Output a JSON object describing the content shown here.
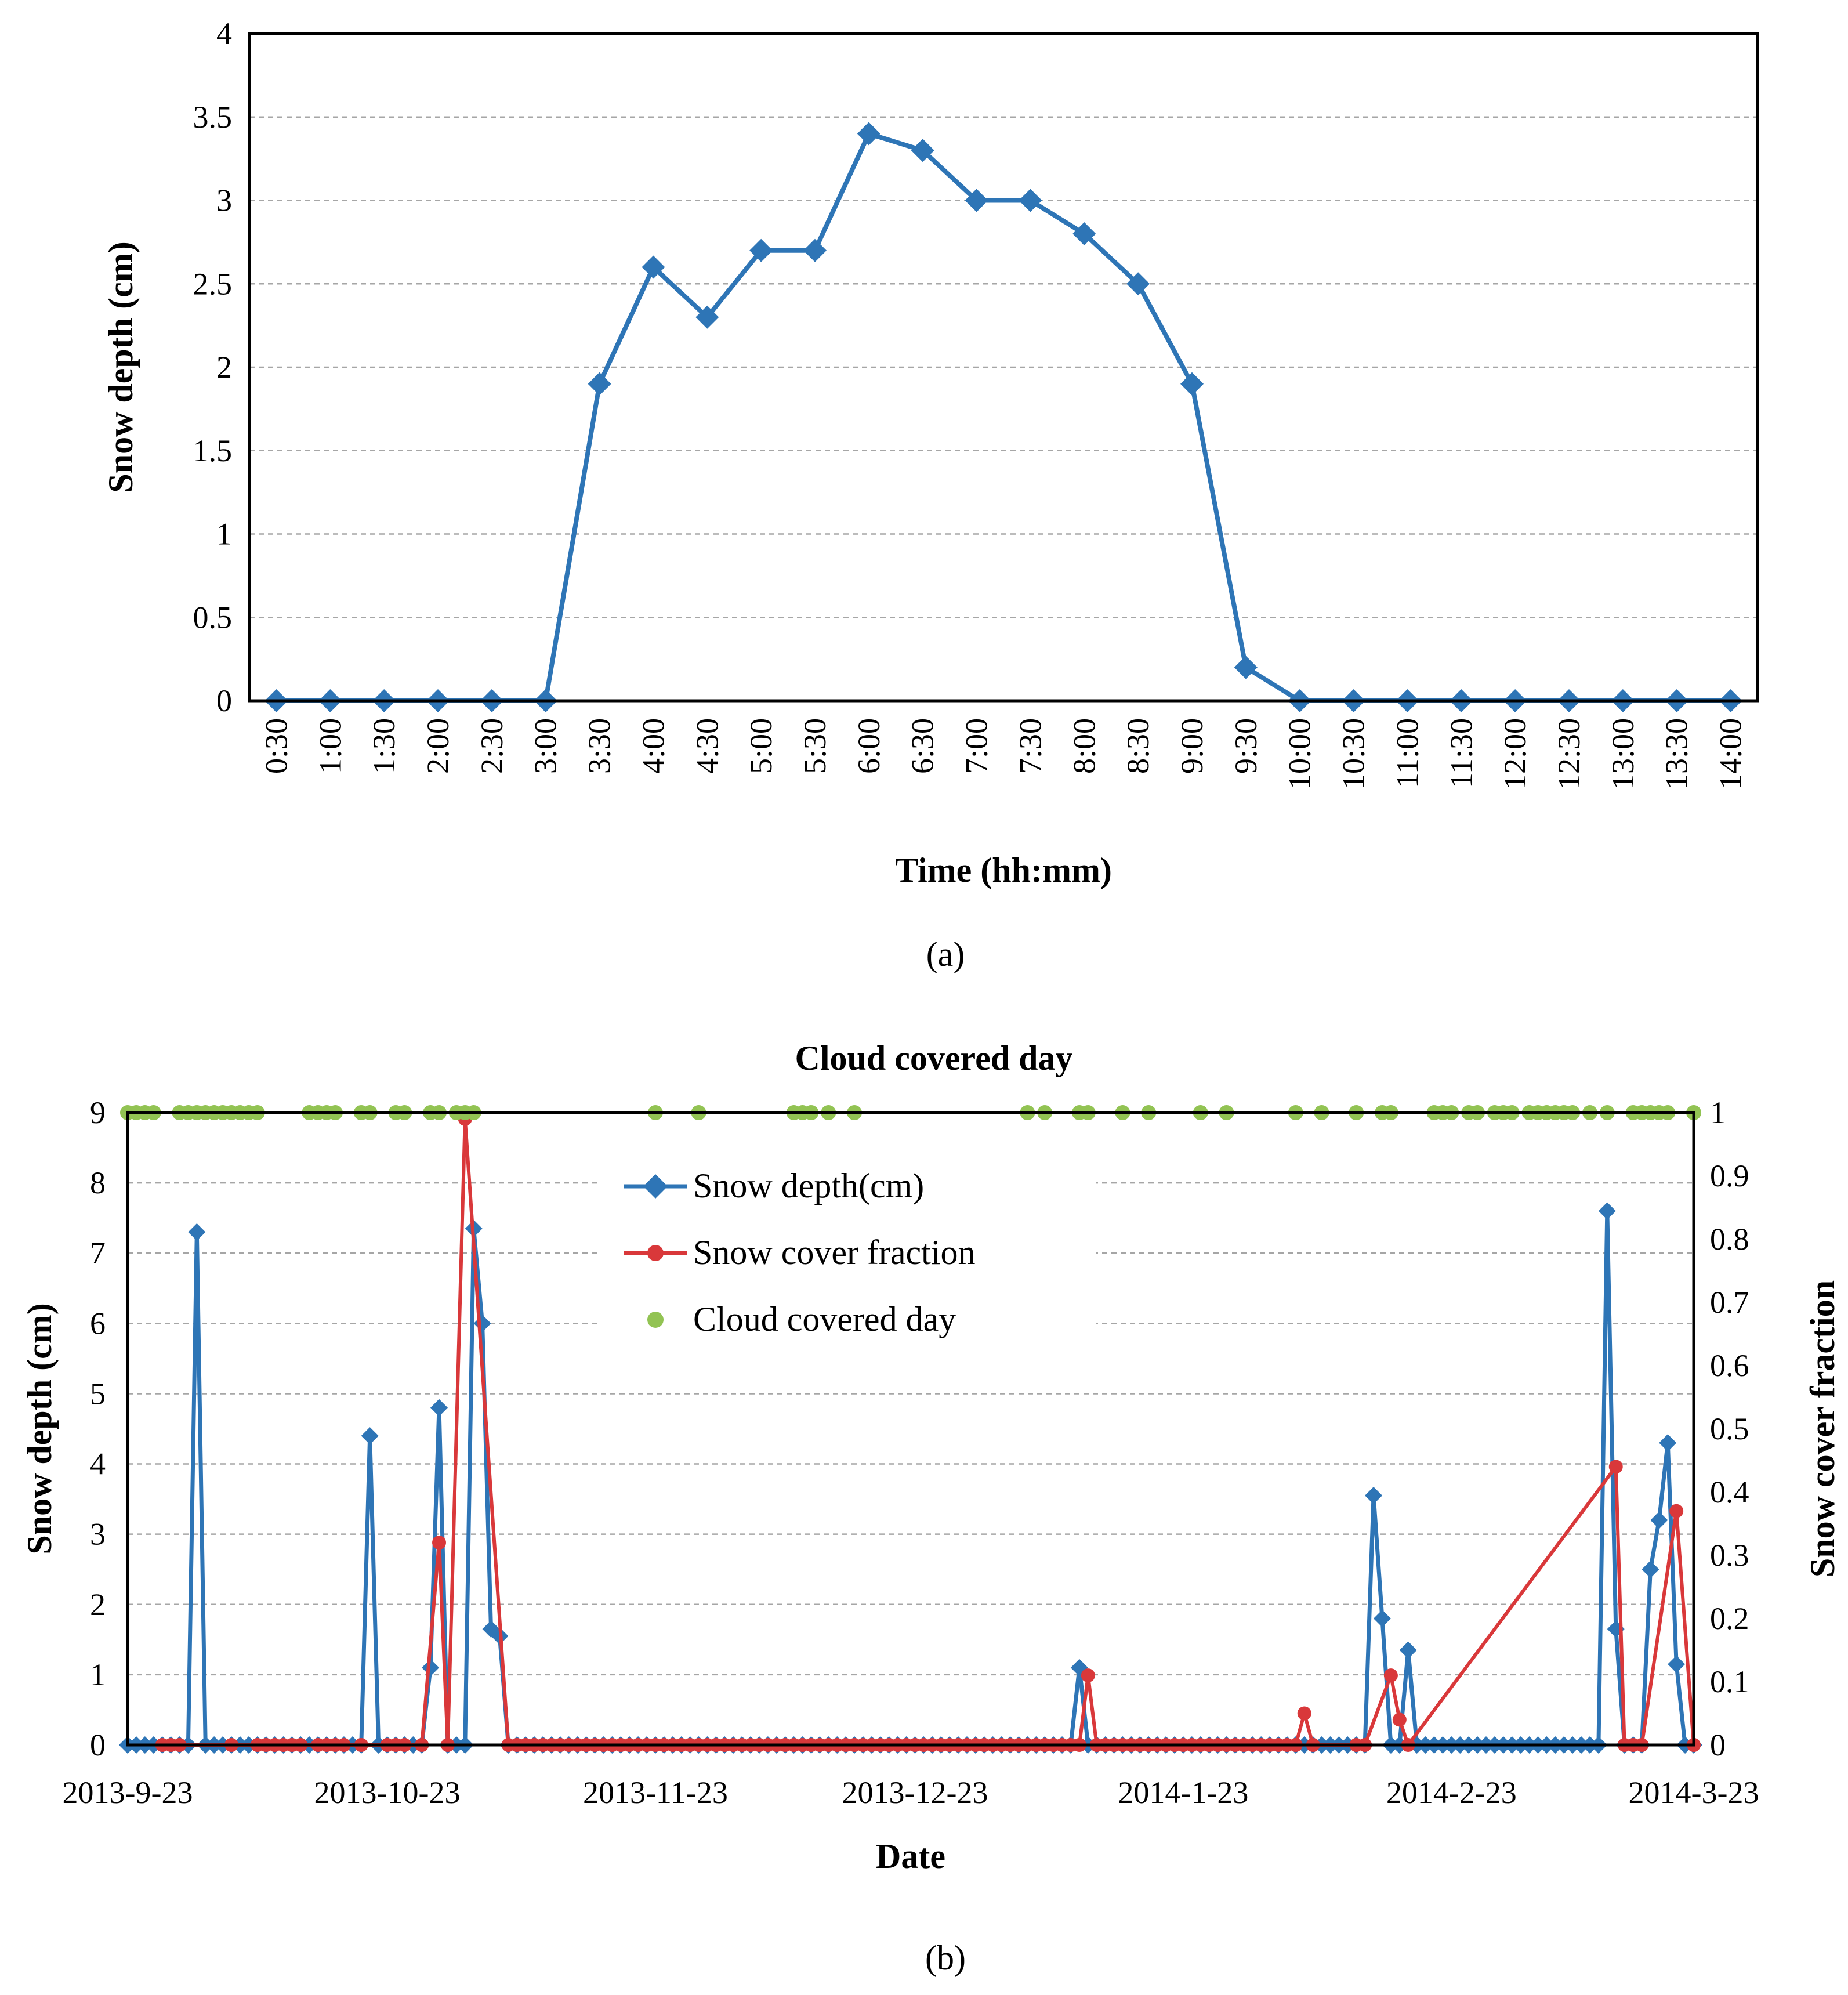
{
  "figure": {
    "caption_a": "(a)",
    "caption_b": "(b)"
  },
  "chart_data": [
    {
      "type": "line",
      "title": "",
      "xlabel": "Time (hh:mm)",
      "ylabel": "Snow depth (cm)",
      "ylim": [
        0,
        4
      ],
      "yticks": [
        0,
        0.5,
        1,
        1.5,
        2,
        2.5,
        3,
        3.5,
        4
      ],
      "ytick_labels": [
        "0",
        "0.5",
        "1",
        "1.5",
        "2",
        "2.5",
        "3",
        "3.5",
        "4"
      ],
      "grid": true,
      "categories": [
        "0:30",
        "1:00",
        "1:30",
        "2:00",
        "2:30",
        "3:00",
        "3:30",
        "4:00",
        "4:30",
        "5:00",
        "5:30",
        "6:00",
        "6:30",
        "7:00",
        "7:30",
        "8:00",
        "8:30",
        "9:00",
        "9:30",
        "10:00",
        "10:30",
        "11:00",
        "11:30",
        "12:00",
        "12:30",
        "13:00",
        "13:30",
        "14:00"
      ],
      "series": [
        {
          "name": "Snow depth",
          "color": "#2e75b6",
          "marker": "diamond",
          "values": [
            0,
            0,
            0,
            0,
            0,
            0,
            1.9,
            2.6,
            2.3,
            2.7,
            2.7,
            3.4,
            3.3,
            3.0,
            3.0,
            2.8,
            2.5,
            1.9,
            0.2,
            0,
            0,
            0,
            0,
            0,
            0,
            0,
            0,
            0
          ]
        }
      ]
    },
    {
      "type": "line",
      "title": "Cloud covered day",
      "xlabel": "Date",
      "ylabel": "Snow depth (cm)",
      "y2label": "Snow cover fraction",
      "ylim": [
        0,
        9
      ],
      "y2lim": [
        0,
        1
      ],
      "yticks": [
        0,
        1,
        2,
        3,
        4,
        5,
        6,
        7,
        8,
        9
      ],
      "ytick_labels": [
        "0",
        "1",
        "2",
        "3",
        "4",
        "5",
        "6",
        "7",
        "8",
        "9"
      ],
      "y2ticks": [
        0,
        0.1,
        0.2,
        0.3,
        0.4,
        0.5,
        0.6,
        0.7,
        0.8,
        0.9,
        1
      ],
      "y2tick_labels": [
        "0",
        "0.1",
        "0.2",
        "0.3",
        "0.4",
        "0.5",
        "0.6",
        "0.7",
        "0.8",
        "0.9",
        "1"
      ],
      "xtick_days": [
        0,
        30,
        61,
        91,
        122,
        153,
        181
      ],
      "xtick_labels": [
        "2013-9-23",
        "2013-10-23",
        "2013-11-23",
        "2013-12-23",
        "2014-1-23",
        "2014-2-23",
        "2014-3-23"
      ],
      "xlim_days": [
        0,
        181
      ],
      "grid": true,
      "legend_position": "top-center",
      "legend": [
        "Snow depth(cm)",
        "Snow cover fraction",
        "Cloud covered day"
      ],
      "series": [
        {
          "name": "Snow depth(cm)",
          "color": "#2e75b6",
          "marker": "diamond",
          "axis": "left",
          "points": [
            [
              0,
              0
            ],
            [
              1,
              0
            ],
            [
              2,
              0
            ],
            [
              3,
              0
            ],
            [
              4,
              0
            ],
            [
              5,
              0
            ],
            [
              6,
              0
            ],
            [
              7,
              0
            ],
            [
              8,
              7.3
            ],
            [
              9,
              0
            ],
            [
              10,
              0
            ],
            [
              11,
              0
            ],
            [
              12,
              0
            ],
            [
              13,
              0
            ],
            [
              14,
              0
            ],
            [
              15,
              0
            ],
            [
              16,
              0
            ],
            [
              17,
              0
            ],
            [
              18,
              0
            ],
            [
              19,
              0
            ],
            [
              20,
              0
            ],
            [
              21,
              0
            ],
            [
              22,
              0
            ],
            [
              23,
              0
            ],
            [
              24,
              0
            ],
            [
              25,
              0
            ],
            [
              26,
              0
            ],
            [
              27,
              0
            ],
            [
              28,
              4.4
            ],
            [
              29,
              0
            ],
            [
              30,
              0
            ],
            [
              31,
              0
            ],
            [
              32,
              0
            ],
            [
              33,
              0
            ],
            [
              34,
              0
            ],
            [
              35,
              1.1
            ],
            [
              36,
              4.8
            ],
            [
              37,
              0
            ],
            [
              38,
              0
            ],
            [
              39,
              0
            ],
            [
              40,
              7.35
            ],
            [
              41,
              6.0
            ],
            [
              42,
              1.65
            ],
            [
              43,
              1.55
            ],
            [
              44,
              0
            ],
            [
              45,
              0
            ],
            [
              126,
              0
            ],
            [
              127,
              0
            ],
            [
              128,
              0
            ],
            [
              129,
              0
            ],
            [
              130,
              0
            ],
            [
              131,
              0
            ],
            [
              132,
              0
            ],
            [
              133,
              0
            ],
            [
              134,
              0
            ],
            [
              135,
              0
            ],
            [
              136,
              0
            ],
            [
              137,
              0
            ],
            [
              138,
              0
            ],
            [
              139,
              0
            ],
            [
              140,
              0
            ],
            [
              141,
              0
            ],
            [
              142,
              0
            ],
            [
              143,
              0
            ],
            [
              144,
              3.55
            ],
            [
              145,
              1.8
            ],
            [
              146,
              0
            ],
            [
              147,
              0
            ],
            [
              148,
              1.35
            ],
            [
              149,
              0
            ],
            [
              150,
              0
            ],
            [
              151,
              0
            ],
            [
              152,
              0
            ],
            [
              153,
              0
            ],
            [
              154,
              0
            ],
            [
              155,
              0
            ],
            [
              156,
              0
            ],
            [
              157,
              0
            ],
            [
              158,
              0
            ],
            [
              159,
              0
            ],
            [
              160,
              0
            ],
            [
              161,
              0
            ],
            [
              162,
              0
            ],
            [
              163,
              0
            ],
            [
              164,
              0
            ],
            [
              165,
              0
            ],
            [
              166,
              0
            ],
            [
              167,
              0
            ],
            [
              168,
              0
            ],
            [
              169,
              0
            ],
            [
              170,
              0
            ],
            [
              171,
              7.6
            ],
            [
              172,
              1.65
            ],
            [
              173,
              0
            ],
            [
              174,
              0
            ],
            [
              175,
              0
            ],
            [
              176,
              2.5
            ],
            [
              177,
              3.2
            ],
            [
              178,
              4.3
            ],
            [
              179,
              1.15
            ],
            [
              180,
              0
            ],
            [
              181,
              0
            ]
          ],
          "flat_segments": [
            [
              45,
              126
            ]
          ],
          "flat_extra_points": [
            [
              110,
              1.1
            ],
            [
              111,
              0
            ]
          ]
        },
        {
          "name": "Snow cover fraction",
          "color": "#d9383a",
          "marker": "circle",
          "axis": "right",
          "points": [
            [
              4,
              0
            ],
            [
              5,
              0
            ],
            [
              6,
              0
            ],
            [
              12,
              0
            ],
            [
              15,
              0
            ],
            [
              16,
              0
            ],
            [
              17,
              0
            ],
            [
              18,
              0
            ],
            [
              19,
              0
            ],
            [
              20,
              0
            ],
            [
              22,
              0
            ],
            [
              23,
              0
            ],
            [
              24,
              0
            ],
            [
              25,
              0
            ],
            [
              27,
              0
            ],
            [
              30,
              0
            ],
            [
              31,
              0
            ],
            [
              32,
              0
            ],
            [
              34,
              0
            ],
            [
              36,
              0.32
            ],
            [
              37,
              0
            ],
            [
              39,
              0.99
            ],
            [
              44,
              0
            ],
            [
              45,
              0
            ],
            [
              111,
              0.11
            ],
            [
              112,
              0
            ],
            [
              136,
              0.05
            ],
            [
              137,
              0
            ],
            [
              142,
              0
            ],
            [
              143,
              0
            ],
            [
              146,
              0.11
            ],
            [
              147,
              0.04
            ],
            [
              148,
              0
            ],
            [
              172,
              0.44
            ],
            [
              173,
              0
            ],
            [
              174,
              0
            ],
            [
              175,
              0
            ],
            [
              179,
              0.37
            ],
            [
              181,
              0
            ]
          ],
          "flat_segments": [
            [
              45,
              136
            ]
          ]
        },
        {
          "name": "Cloud covered day",
          "color": "#92c353",
          "marker": "circle",
          "axis": "right",
          "value": 1,
          "days": [
            0,
            1,
            2,
            3,
            6,
            7,
            8,
            9,
            10,
            11,
            12,
            13,
            14,
            15,
            21,
            22,
            23,
            24,
            27,
            28,
            31,
            32,
            35,
            36,
            38,
            39,
            40,
            61,
            66,
            77,
            78,
            79,
            81,
            84,
            104,
            106,
            110,
            111,
            115,
            118,
            124,
            127,
            135,
            138,
            142,
            145,
            146,
            151,
            152,
            153,
            155,
            156,
            158,
            159,
            160,
            162,
            163,
            164,
            165,
            166,
            167,
            169,
            171,
            174,
            175,
            176,
            177,
            178,
            181
          ]
        }
      ]
    }
  ]
}
